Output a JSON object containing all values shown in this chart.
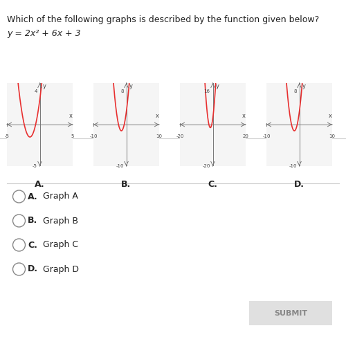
{
  "title": "Which of the following graphs is described by the function given below?",
  "formula": "y = 2x² + 6x + 3",
  "bg_color": "#ffffff",
  "curve_color": "#e83030",
  "axis_color": "#555555",
  "graphs": [
    {
      "label": "A.",
      "xlim": [
        -5,
        5
      ],
      "ylim": [
        -5,
        5
      ],
      "xticks": [
        -5,
        5
      ],
      "yticks": [
        -5
      ],
      "scale": 1
    },
    {
      "label": "B.",
      "xlim": [
        -10,
        10
      ],
      "ylim": [
        -10,
        10
      ],
      "xticks": [
        -10,
        10
      ],
      "yticks": [
        -10
      ],
      "scale": 1
    },
    {
      "label": "C.",
      "xlim": [
        -20,
        20
      ],
      "ylim": [
        -20,
        20
      ],
      "xticks": [
        -20,
        20
      ],
      "yticks": [
        -20
      ],
      "scale": 1
    },
    {
      "label": "D.",
      "xlim": [
        -10,
        10
      ],
      "ylim": [
        -10,
        10
      ],
      "xticks": [
        -10,
        10
      ],
      "yticks": [
        -10
      ],
      "scale": 1
    }
  ],
  "choices": [
    "A.  Graph A",
    "B.  Graph B",
    "C.  Graph C",
    "D.  Graph D"
  ],
  "submit_label": "SUBMIT"
}
